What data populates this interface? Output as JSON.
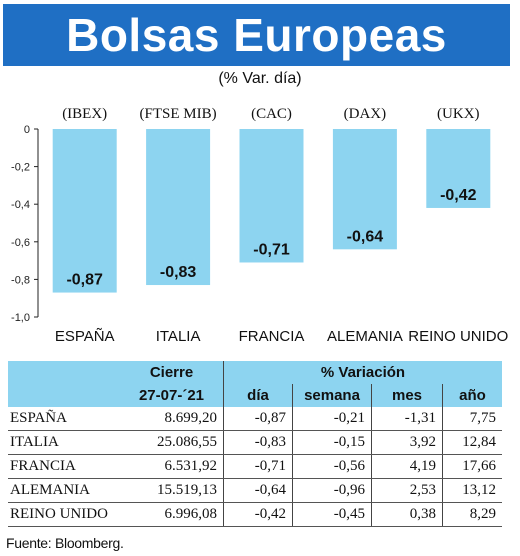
{
  "title": "Bolsas Europeas",
  "subtitle": "(% Var. día)",
  "chart_data": {
    "type": "bar",
    "categories": [
      "ESPAÑA",
      "ITALIA",
      "FRANCIA",
      "ALEMANIA",
      "REINO UNIDO"
    ],
    "indices": [
      "(IBEX)",
      "(FTSE MIB)",
      "(CAC)",
      "(DAX)",
      "(UKX)"
    ],
    "values": [
      -0.87,
      -0.83,
      -0.71,
      -0.64,
      -0.42
    ],
    "value_labels": [
      "-0,87",
      "-0,83",
      "-0,71",
      "-0,64",
      "-0,42"
    ],
    "ylim": [
      -1.0,
      0
    ],
    "yticks": [
      0,
      -0.2,
      -0.4,
      -0.6,
      -0.8,
      -1.0
    ],
    "ytick_labels": [
      "0",
      "-0,2",
      "-0,4",
      "-0,6",
      "-0,8",
      "-1,0"
    ],
    "grid": false,
    "bar_color": "#8dd4f0"
  },
  "table": {
    "header_cierre": "Cierre",
    "header_variacion": "% Variación",
    "date": "27-07-´21",
    "columns": [
      "día",
      "semana",
      "mes",
      "año"
    ],
    "rows": [
      {
        "name": "ESPAÑA",
        "cierre": "8.699,20",
        "dia": "-0,87",
        "semana": "-0,21",
        "mes": "-1,31",
        "anio": "7,75"
      },
      {
        "name": "ITALIA",
        "cierre": "25.086,55",
        "dia": "-0,83",
        "semana": "-0,15",
        "mes": "3,92",
        "anio": "12,84"
      },
      {
        "name": "FRANCIA",
        "cierre": "6.531,92",
        "dia": "-0,71",
        "semana": "-0,56",
        "mes": "4,19",
        "anio": "17,66"
      },
      {
        "name": "ALEMANIA",
        "cierre": "15.519,13",
        "dia": "-0,64",
        "semana": "-0,96",
        "mes": "2,53",
        "anio": "13,12"
      },
      {
        "name": "REINO UNIDO",
        "cierre": "6.996,08",
        "dia": "-0,42",
        "semana": "-0,45",
        "mes": "0,38",
        "anio": "8,29"
      }
    ]
  },
  "source": "Fuente: Bloomberg.",
  "colors": {
    "title_bg": "#1f6fc4",
    "header_bg": "#8dd4f0"
  }
}
